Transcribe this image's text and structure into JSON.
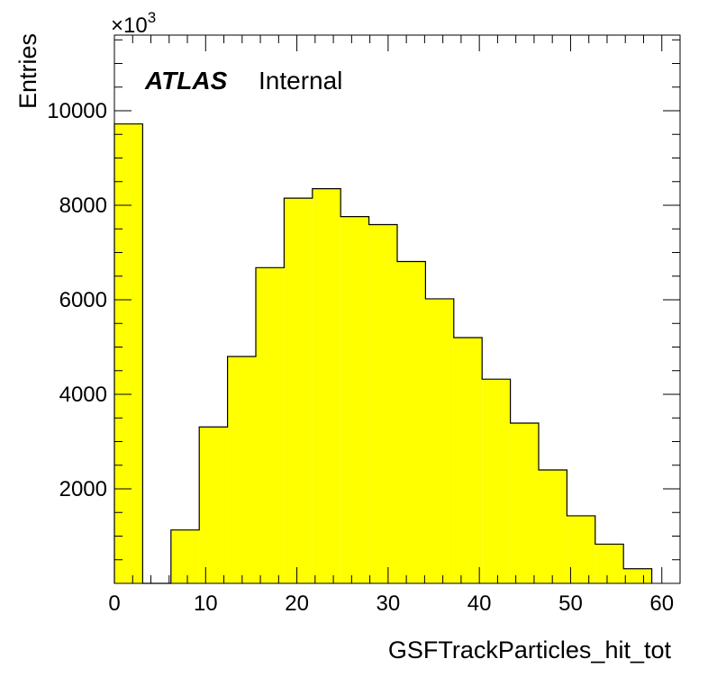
{
  "chart_data": {
    "type": "bar",
    "xlabel": "GSFTrackParticles_hit_tot",
    "ylabel": "Entries",
    "y_exponent_label": "×10",
    "y_exponent_power": "3",
    "label_primary": "ATLAS",
    "label_secondary": "Internal",
    "xlim": [
      0,
      62
    ],
    "ylim": [
      0,
      11600
    ],
    "x_ticks": [
      0,
      10,
      20,
      30,
      40,
      50,
      60
    ],
    "y_ticks": [
      2000,
      4000,
      6000,
      8000,
      10000
    ],
    "fill_color": "#ffff00",
    "line_color": "#000000",
    "bin_edges": [
      0,
      3.1,
      6.2,
      9.3,
      12.4,
      15.5,
      18.6,
      21.7,
      24.8,
      27.9,
      31.0,
      34.1,
      37.2,
      40.3,
      43.4,
      46.5,
      49.6,
      52.7,
      55.8,
      58.9
    ],
    "values": [
      9720,
      0,
      1130,
      3310,
      4800,
      6680,
      8150,
      8350,
      7760,
      7590,
      6810,
      6020,
      5200,
      4320,
      3390,
      2400,
      1430,
      830,
      310
    ]
  }
}
